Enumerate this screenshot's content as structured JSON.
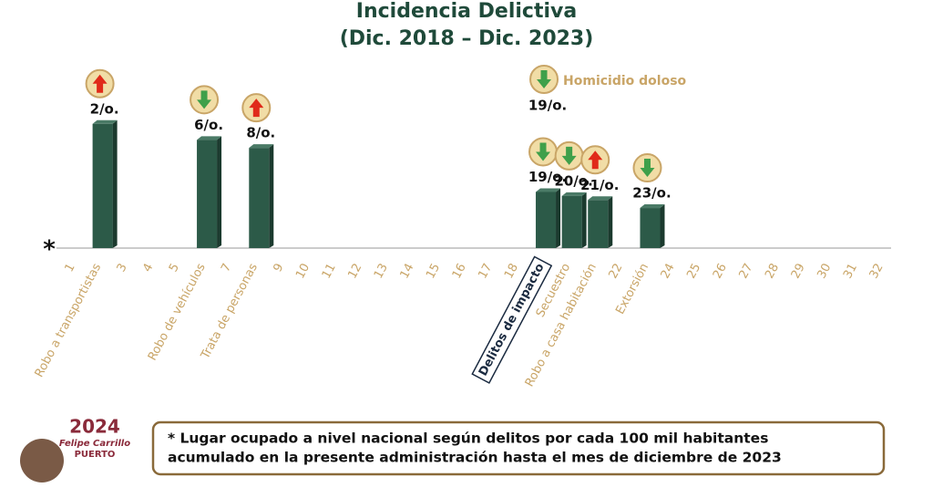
{
  "chart_data": {
    "type": "bar",
    "title": "Incidencia Delictiva",
    "subtitle": "(Dic. 2018 – Dic. 2023)",
    "x": [
      2,
      6,
      8,
      19,
      20,
      21,
      23
    ],
    "values": [
      2,
      6,
      8,
      19,
      20,
      21,
      23
    ],
    "value_labels": [
      "2/o.",
      "6/o.",
      "8/o.",
      "19/o.",
      "20/o.",
      "21/o.",
      "23/o."
    ],
    "trend": [
      "up",
      "down",
      "up",
      "down",
      "down",
      "up",
      "down"
    ],
    "color": "#2c5a48",
    "xlim": [
      1,
      32
    ],
    "ylim": [
      33,
      0
    ],
    "xticks": [
      1,
      {
        "value": 2,
        "label": "Robo a transportistas"
      },
      3,
      4,
      5,
      {
        "value": 6,
        "label": "Robo de vehículos"
      },
      7,
      {
        "value": 8,
        "label": "Trata de personas"
      },
      9,
      10,
      11,
      12,
      13,
      14,
      15,
      16,
      17,
      18,
      {
        "value": 19,
        "label": "Delitos de impacto"
      },
      {
        "value": 20,
        "label": "Secuestro"
      },
      {
        "value": 21,
        "label": "Robo a casa habitación"
      },
      22,
      {
        "value": 23,
        "label": "Extorsión"
      },
      24,
      25,
      26,
      27,
      28,
      29,
      30,
      31,
      32
    ],
    "highlight_tick": 19,
    "axis_marker": "*",
    "annotation": {
      "text": "Homicidio doloso",
      "value": 19,
      "value_label": "19/o.",
      "trend": "down"
    },
    "note": [
      "* Lugar ocupado a nivel nacional según delitos por cada 100 mil habitantes",
      "acumulado en la presente administración hasta el mes de diciembre de 2023"
    ],
    "logo": [
      "2024",
      "Felipe Carrillo",
      "PUERTO"
    ]
  }
}
